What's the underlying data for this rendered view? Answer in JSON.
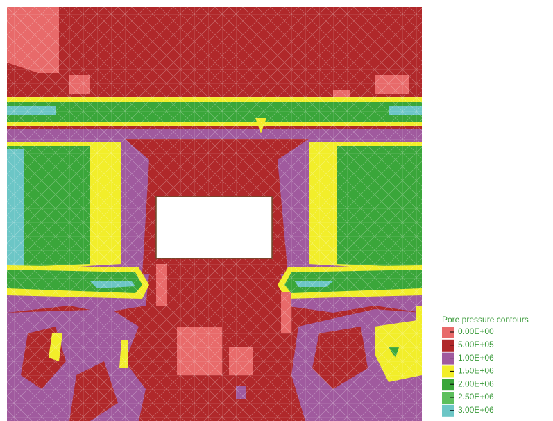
{
  "chart_data": {
    "type": "contour",
    "legend_title": "Pore pressure contours",
    "levels": [
      {
        "value": 0,
        "label": "0.00E+00"
      },
      {
        "value": 500000,
        "label": "5.00E+05"
      },
      {
        "value": 1000000,
        "label": "1.00E+06"
      },
      {
        "value": 1500000,
        "label": "1.50E+06"
      },
      {
        "value": 2000000,
        "label": "2.00E+06"
      },
      {
        "value": 2500000,
        "label": "2.50E+06"
      },
      {
        "value": 3000000,
        "label": "3.00E+06"
      }
    ],
    "colors": [
      "#e86a6a",
      "#b0282a",
      "#a05a9e",
      "#f2ee2a",
      "#3aa63a",
      "#5cbf5c",
      "#6cc6c6"
    ],
    "legend": "lower right"
  }
}
